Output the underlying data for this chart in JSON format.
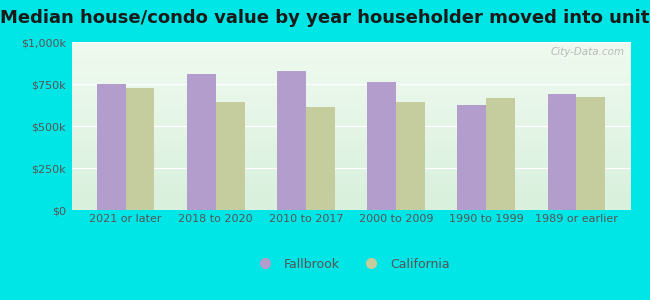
{
  "title": "Median house/condo value by year householder moved into unit",
  "categories": [
    "2021 or later",
    "2018 to 2020",
    "2010 to 2017",
    "2000 to 2009",
    "1990 to 1999",
    "1989 or earlier"
  ],
  "fallbrook_values": [
    750000,
    810000,
    825000,
    760000,
    625000,
    690000
  ],
  "california_values": [
    725000,
    645000,
    615000,
    640000,
    665000,
    670000
  ],
  "fallbrook_color": "#b39dcc",
  "california_color": "#c5cc9d",
  "background_color": "#00e5e5",
  "plot_bg_top": "#e8f5e0",
  "plot_bg_bottom": "#d0f0d8",
  "ylim": [
    0,
    1000000
  ],
  "yticks": [
    0,
    250000,
    500000,
    750000,
    1000000
  ],
  "ytick_labels": [
    "$0",
    "$250k",
    "$500k",
    "$750k",
    "$1,000k"
  ],
  "watermark": "City-Data.com",
  "legend_fallbrook": "Fallbrook",
  "legend_california": "California",
  "title_fontsize": 13,
  "tick_fontsize": 8,
  "legend_fontsize": 9
}
